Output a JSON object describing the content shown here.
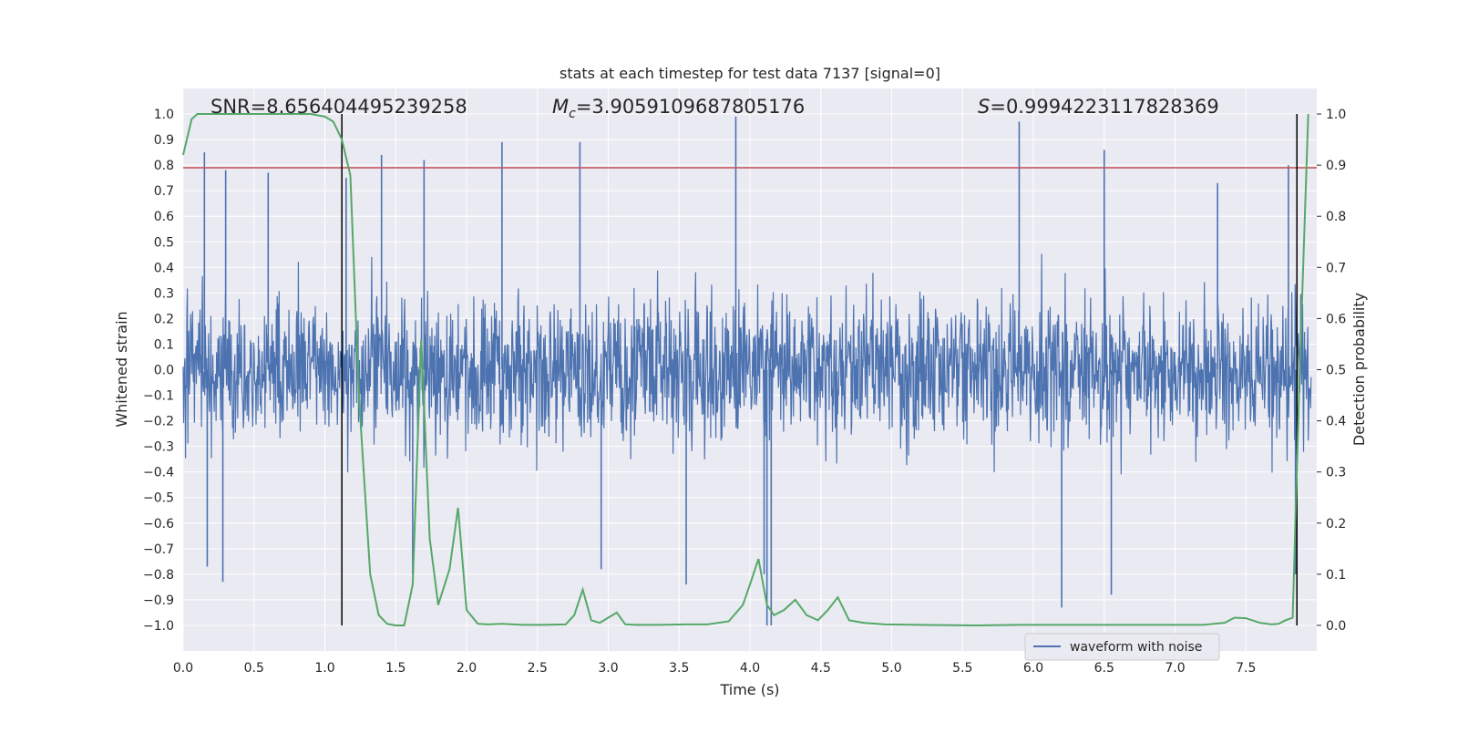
{
  "chart_data": {
    "type": "line",
    "title": "stats at each timestep for test data 7137 [signal=0]",
    "xlabel": "Time (s)",
    "ylabel_left": "Whitened strain",
    "ylabel_right": "Detection probability",
    "xlim": [
      0.0,
      8.0
    ],
    "ylim_left": [
      -1.1,
      1.1
    ],
    "ylim_right": [
      -0.05,
      1.05
    ],
    "xticks": [
      "0.0",
      "0.5",
      "1.0",
      "1.5",
      "2.0",
      "2.5",
      "3.0",
      "3.5",
      "4.0",
      "4.5",
      "5.0",
      "5.5",
      "6.0",
      "6.5",
      "7.0",
      "7.5"
    ],
    "xtick_values": [
      0,
      0.5,
      1,
      1.5,
      2,
      2.5,
      3,
      3.5,
      4,
      4.5,
      5,
      5.5,
      6,
      6.5,
      7,
      7.5
    ],
    "yticks_left": [
      "1.0",
      "0.9",
      "0.8",
      "0.7",
      "0.6",
      "0.5",
      "0.4",
      "0.3",
      "0.2",
      "0.1",
      "0.0",
      "−0.1",
      "−0.2",
      "−0.3",
      "−0.4",
      "−0.5",
      "−0.6",
      "−0.7",
      "−0.8",
      "−0.9",
      "−1.0"
    ],
    "ytick_values_left": [
      1.0,
      0.9,
      0.8,
      0.7,
      0.6,
      0.5,
      0.4,
      0.3,
      0.2,
      0.1,
      0.0,
      -0.1,
      -0.2,
      -0.3,
      -0.4,
      -0.5,
      -0.6,
      -0.7,
      -0.8,
      -0.9,
      -1.0
    ],
    "yticks_right": [
      "1.0",
      "0.9",
      "0.8",
      "0.7",
      "0.6",
      "0.5",
      "0.4",
      "0.3",
      "0.2",
      "0.1",
      "0.0"
    ],
    "ytick_values_right": [
      1.0,
      0.9,
      0.8,
      0.7,
      0.6,
      0.5,
      0.4,
      0.3,
      0.2,
      0.1,
      0.0
    ],
    "grid": true,
    "legend_position": "lower-right",
    "annotations": {
      "snr": "SNR=8.656404495239258",
      "mc_symbol": "M",
      "mc_sub": "c",
      "mc_value": "=3.9059109687805176",
      "s_symbol": "S",
      "s_value": "=0.9994223117828369"
    },
    "series": [
      {
        "name": "waveform with noise",
        "color": "#4c72b0",
        "axis": "left",
        "style": "dense noisy strain (approx. amplitude envelope ±0.5, peaks to ±1.0)",
        "peak_x": [
          0.15,
          0.3,
          0.6,
          1.15,
          1.4,
          1.7,
          2.25,
          2.8,
          3.9,
          4.1,
          4.15,
          5.9,
          6.5,
          7.3,
          7.8
        ],
        "peak_y": [
          0.85,
          0.78,
          0.77,
          0.75,
          0.84,
          0.82,
          0.89,
          0.89,
          0.99,
          -0.8,
          -1.0,
          0.97,
          0.86,
          0.73,
          0.8
        ],
        "trough_x": [
          0.17,
          0.28,
          1.62,
          2.95,
          3.55,
          4.12,
          6.2,
          6.55,
          7.85
        ],
        "trough_y": [
          -0.77,
          -0.83,
          -0.8,
          -0.78,
          -0.84,
          -1.0,
          -0.93,
          -0.88,
          -0.8
        ]
      },
      {
        "name": "Detection probability",
        "color": "#55a868",
        "axis": "right",
        "x": [
          0.0,
          0.06,
          0.1,
          0.2,
          0.3,
          0.4,
          0.5,
          0.6,
          0.7,
          0.8,
          0.9,
          1.0,
          1.06,
          1.12,
          1.18,
          1.24,
          1.32,
          1.38,
          1.44,
          1.5,
          1.56,
          1.62,
          1.68,
          1.74,
          1.8,
          1.88,
          1.94,
          2.0,
          2.08,
          2.15,
          2.25,
          2.4,
          2.55,
          2.7,
          2.76,
          2.82,
          2.88,
          2.94,
          3.0,
          3.06,
          3.12,
          3.2,
          3.35,
          3.55,
          3.7,
          3.85,
          3.95,
          4.0,
          4.06,
          4.12,
          4.17,
          4.24,
          4.32,
          4.4,
          4.48,
          4.55,
          4.62,
          4.7,
          4.8,
          4.95,
          5.2,
          5.6,
          5.9,
          6.2,
          6.5,
          6.9,
          7.2,
          7.35,
          7.42,
          7.5,
          7.6,
          7.68,
          7.73,
          7.78,
          7.83,
          7.88,
          7.94
        ],
        "y": [
          0.92,
          0.99,
          1.0,
          1.0,
          1.0,
          1.0,
          1.0,
          1.0,
          1.0,
          1.0,
          1.0,
          0.995,
          0.985,
          0.95,
          0.88,
          0.45,
          0.1,
          0.02,
          0.003,
          0.0,
          0.0,
          0.08,
          0.56,
          0.17,
          0.04,
          0.11,
          0.23,
          0.03,
          0.003,
          0.002,
          0.003,
          0.001,
          0.001,
          0.002,
          0.02,
          0.07,
          0.01,
          0.005,
          0.015,
          0.025,
          0.002,
          0.001,
          0.001,
          0.002,
          0.002,
          0.008,
          0.04,
          0.08,
          0.13,
          0.04,
          0.02,
          0.03,
          0.05,
          0.02,
          0.01,
          0.03,
          0.055,
          0.01,
          0.005,
          0.002,
          0.001,
          0.0,
          0.001,
          0.001,
          0.001,
          0.001,
          0.001,
          0.005,
          0.015,
          0.014,
          0.005,
          0.002,
          0.003,
          0.01,
          0.015,
          0.5,
          1.0
        ]
      }
    ],
    "threshold_line": {
      "axis": "left",
      "y": 0.79,
      "color": "#c44e52"
    },
    "vertical_lines": {
      "x": [
        1.12,
        7.86
      ],
      "color": "#000000"
    }
  }
}
